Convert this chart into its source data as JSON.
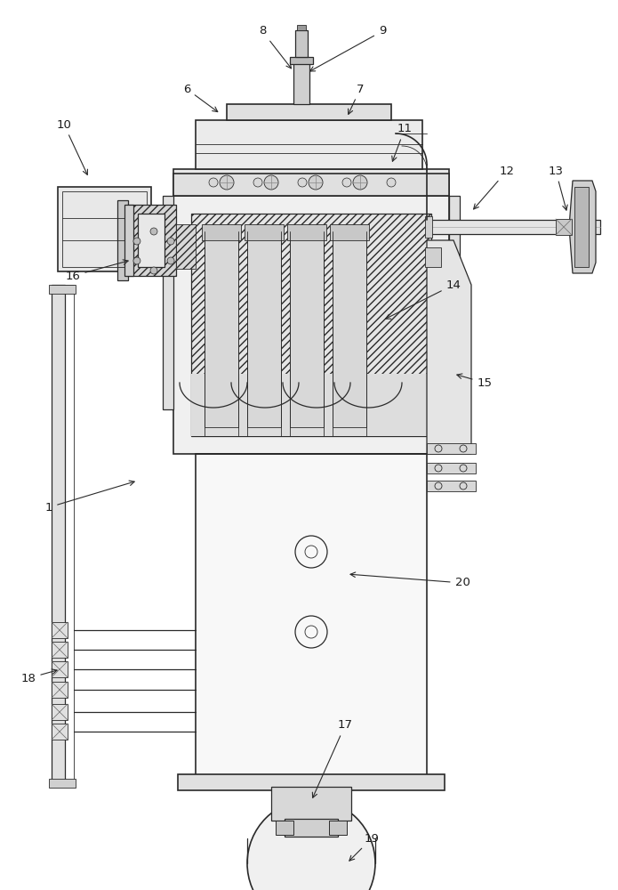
{
  "background_color": "#ffffff",
  "line_color": "#2a2a2a",
  "label_color": "#1a1a1a",
  "fig_width": 6.95,
  "fig_height": 10.0
}
